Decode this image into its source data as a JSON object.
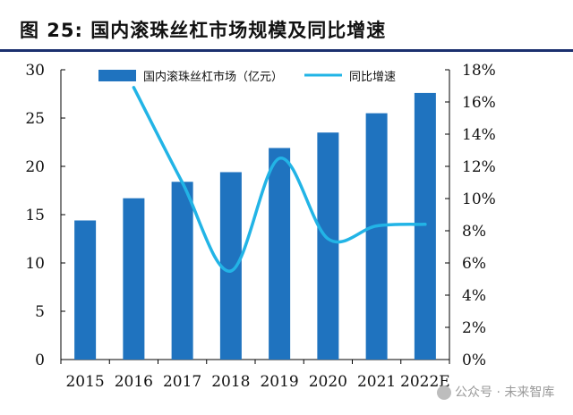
{
  "figure": {
    "label": "图 25:",
    "title": "国内滚珠丝杠市场规模及同比增速"
  },
  "watermark": {
    "text": "公众号 · 未来智库"
  },
  "colors": {
    "bar": "#1f73bf",
    "line": "#22b4e6",
    "axis": "#000000",
    "title_rule": "#1b2f6e"
  },
  "chart_data": {
    "type": "bar+line",
    "title": "",
    "categories": [
      "2015",
      "2016",
      "2017",
      "2018",
      "2019",
      "2020",
      "2021",
      "2022E"
    ],
    "series": [
      {
        "name": "国内滚珠丝杠市场（亿元）",
        "type": "bar",
        "axis": "left",
        "values": [
          14.4,
          16.7,
          18.4,
          19.4,
          21.9,
          23.5,
          25.5,
          27.6
        ]
      },
      {
        "name": "同比增速",
        "type": "line",
        "axis": "right",
        "values": [
          null,
          16.9,
          11.0,
          5.5,
          12.5,
          7.5,
          8.3,
          8.4
        ]
      }
    ],
    "y_left": {
      "min": 0,
      "max": 30,
      "ticks": [
        "0",
        "5",
        "10",
        "15",
        "20",
        "25",
        "30"
      ]
    },
    "y_right": {
      "min": 0,
      "max": 18,
      "ticks": [
        "0%",
        "2%",
        "4%",
        "6%",
        "8%",
        "10%",
        "12%",
        "14%",
        "16%",
        "18%"
      ]
    },
    "legend": {
      "position": "top",
      "items": [
        "国内滚珠丝杠市场（亿元）",
        "同比增速"
      ]
    },
    "grid": false
  }
}
